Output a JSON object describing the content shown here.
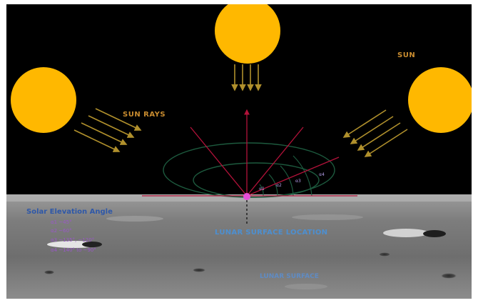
{
  "labels": {
    "sun": "SUN",
    "sun_rays": "SUN  RAYS",
    "surface_location": "LUNAR SURFACE LOCATION",
    "surface": "LUNAR SURFACE"
  },
  "legend": {
    "title": "Solar Elevation Angle",
    "items": [
      "α1 ~45°",
      "α2 ~60°",
      "α3 ~135°, ~120°",
      "α4 ~140° to ~90°"
    ]
  },
  "angles": [
    "α1",
    "α2",
    "α3",
    "α4"
  ],
  "colors": {
    "sky": "#000000",
    "sun": "#ffb800",
    "ray": "#b0902c",
    "vector": "#b3123a",
    "orbit": "#1d5a3e",
    "marker": "#e64fd8",
    "label": "#c98c2f"
  }
}
